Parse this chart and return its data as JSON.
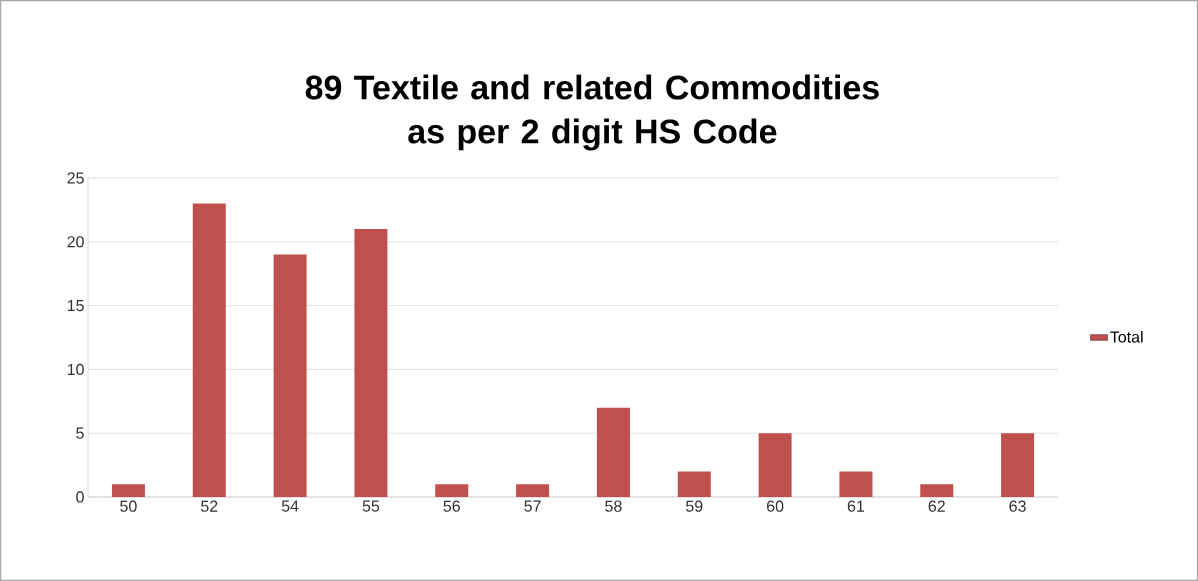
{
  "chart_data": {
    "type": "bar",
    "title": "89 Textile and related Commodities as per 2 digit HS Code",
    "categories": [
      "50",
      "52",
      "54",
      "55",
      "56",
      "57",
      "58",
      "59",
      "60",
      "61",
      "62",
      "63"
    ],
    "series": [
      {
        "name": "Total",
        "color": "#c0504d",
        "values": [
          1,
          23,
          19,
          21,
          1,
          1,
          7,
          2,
          5,
          2,
          1,
          5
        ]
      }
    ],
    "ylim": [
      0,
      25
    ],
    "yticks": [
      0,
      5,
      10,
      15,
      20,
      25
    ],
    "grid": "y",
    "legend": "right"
  }
}
